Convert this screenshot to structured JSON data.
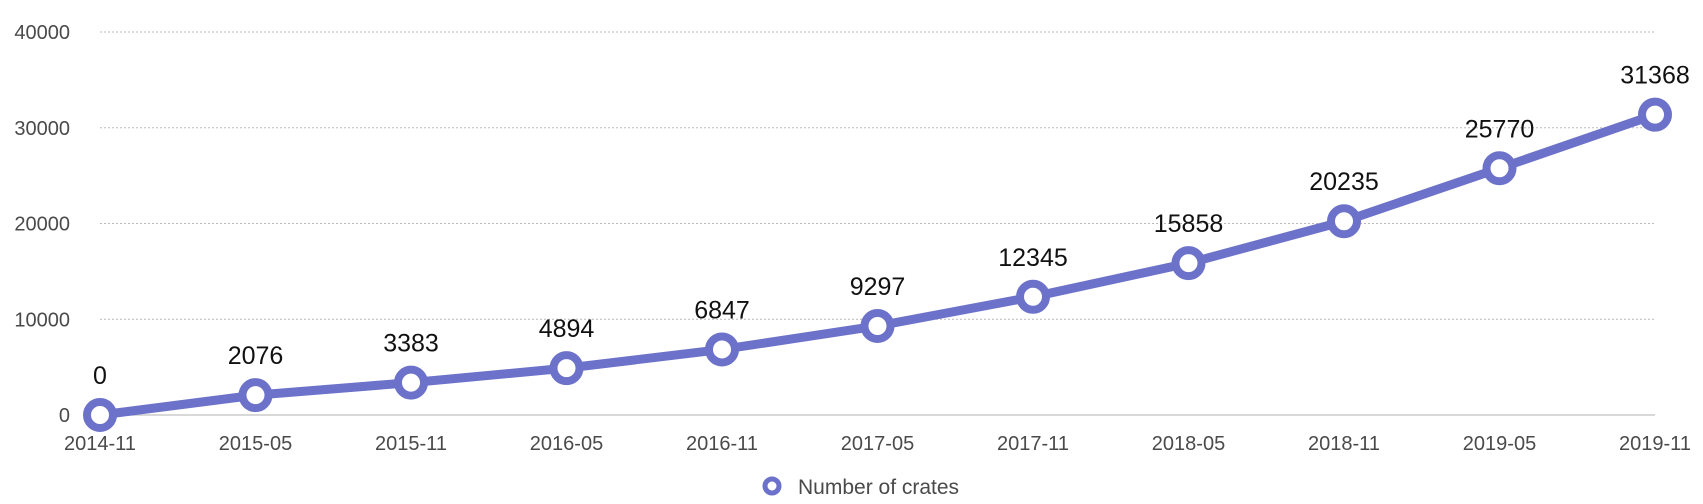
{
  "chart_data": {
    "type": "line",
    "title": "",
    "xlabel": "",
    "ylabel": "",
    "categories": [
      "2014-11",
      "2015-05",
      "2015-11",
      "2016-05",
      "2016-11",
      "2017-05",
      "2017-11",
      "2018-05",
      "2018-11",
      "2019-05",
      "2019-11"
    ],
    "series": [
      {
        "name": "Number of crates",
        "color": "#6c72c9",
        "values": [
          0,
          2076,
          3383,
          4894,
          6847,
          9297,
          12345,
          15858,
          20235,
          25770,
          31368
        ]
      }
    ],
    "ylim": [
      0,
      40000
    ],
    "yticks": [
      "0",
      "10000",
      "20000",
      "30000",
      "40000"
    ],
    "grid": "horizontal dotted",
    "legend": "bottom-center",
    "data_labels": [
      "0",
      "2076",
      "3383",
      "4894",
      "6847",
      "9297",
      "12345",
      "15858",
      "20235",
      "25770",
      "31368"
    ]
  }
}
